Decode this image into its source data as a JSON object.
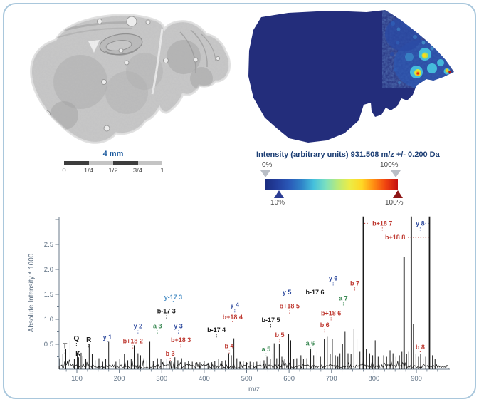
{
  "scale_bar": {
    "label": "4 mm",
    "tick_labels": [
      "0",
      "1/4",
      "1/2",
      "3/4",
      "1"
    ],
    "segment_colors": [
      "#3d3d3d",
      "#c4c4c4",
      "#3d3d3d",
      "#c4c4c4"
    ]
  },
  "colorbar": {
    "title": "Intensity (arbitrary units) 931.508 m/z +/- 0.200 Da",
    "top_left_label": "0%",
    "top_right_label": "100%",
    "bottom_left_label": "10%",
    "bottom_right_label": "100%",
    "top_marker_color": "#b9bec6",
    "low_marker_color": "#2b3c93",
    "max_marker_color": "#8e1616",
    "gradient": [
      "#1b2d80",
      "#233f9e",
      "#2a5ab8",
      "#2f83c8",
      "#45c0dc",
      "#7adfc0",
      "#b8ea7a",
      "#ecec46",
      "#ffd725",
      "#ff8c12",
      "#f04210",
      "#c41010"
    ]
  },
  "chart_data": {
    "type": "line",
    "subtype": "mass-spectrum",
    "xlabel": "m/z",
    "ylabel": "Absolute Intensity * 1000",
    "xlim": [
      58,
      979
    ],
    "ylim": [
      0,
      3.05
    ],
    "x_ticks": [
      100,
      200,
      300,
      400,
      500,
      600,
      700,
      800,
      900
    ],
    "y_ticks": [
      "0.5",
      "1.0",
      "1.5",
      "2.0",
      "2.5"
    ],
    "grid": false,
    "trace_color": "#1a1a1a",
    "axis_color": "#6a7a8a",
    "palette": {
      "y": "#2e4a9e",
      "y17": "#4e91c6",
      "a": "#3c8a55",
      "b": "#bf3a32",
      "b17": "#1a1a1a",
      "residue": "#1a1a1a"
    },
    "peaks": [
      [
        60,
        0.22
      ],
      [
        67,
        0.3
      ],
      [
        74,
        0.4
      ],
      [
        84,
        0.58
      ],
      [
        94,
        0.2
      ],
      [
        101,
        0.3
      ],
      [
        104,
        0.24
      ],
      [
        110,
        0.33
      ],
      [
        114,
        0.26
      ],
      [
        121,
        0.2
      ],
      [
        129,
        0.5
      ],
      [
        136,
        0.3
      ],
      [
        143,
        0.18
      ],
      [
        152,
        0.22
      ],
      [
        161,
        0.15
      ],
      [
        168,
        0.2
      ],
      [
        175,
        0.55
      ],
      [
        183,
        0.18
      ],
      [
        192,
        0.15
      ],
      [
        201,
        0.2
      ],
      [
        212,
        0.3
      ],
      [
        220,
        0.18
      ],
      [
        228,
        0.2
      ],
      [
        235,
        0.48
      ],
      [
        244,
        0.32
      ],
      [
        250,
        0.28
      ],
      [
        258,
        0.22
      ],
      [
        265,
        0.18
      ],
      [
        272,
        0.55
      ],
      [
        280,
        0.16
      ],
      [
        290,
        0.22
      ],
      [
        298,
        0.2
      ],
      [
        305,
        0.15
      ],
      [
        312,
        0.2
      ],
      [
        318,
        0.16
      ],
      [
        323,
        0.17
      ],
      [
        331,
        0.24
      ],
      [
        338,
        0.18
      ],
      [
        347,
        0.22
      ],
      [
        355,
        0.14
      ],
      [
        363,
        0.16
      ],
      [
        372,
        0.15
      ],
      [
        380,
        0.13
      ],
      [
        390,
        0.14
      ],
      [
        400,
        0.16
      ],
      [
        409,
        0.13
      ],
      [
        418,
        0.14
      ],
      [
        425,
        0.17
      ],
      [
        434,
        0.2
      ],
      [
        442,
        0.16
      ],
      [
        450,
        0.18
      ],
      [
        458,
        0.32
      ],
      [
        464,
        0.28
      ],
      [
        470,
        0.62
      ],
      [
        477,
        0.22
      ],
      [
        484,
        0.15
      ],
      [
        492,
        0.17
      ],
      [
        500,
        0.14
      ],
      [
        508,
        0.15
      ],
      [
        516,
        0.14
      ],
      [
        524,
        0.15
      ],
      [
        532,
        0.16
      ],
      [
        541,
        0.18
      ],
      [
        548,
        0.25
      ],
      [
        556,
        0.2
      ],
      [
        562,
        0.3
      ],
      [
        565,
        0.52
      ],
      [
        571,
        0.22
      ],
      [
        577,
        0.5
      ],
      [
        583,
        0.25
      ],
      [
        590,
        0.2
      ],
      [
        599,
        0.7
      ],
      [
        604,
        0.58
      ],
      [
        611,
        0.2
      ],
      [
        618,
        0.22
      ],
      [
        628,
        0.28
      ],
      [
        634,
        0.2
      ],
      [
        642,
        0.22
      ],
      [
        651,
        0.4
      ],
      [
        658,
        0.28
      ],
      [
        666,
        0.35
      ],
      [
        674,
        0.25
      ],
      [
        683,
        0.6
      ],
      [
        690,
        0.65
      ],
      [
        697,
        0.3
      ],
      [
        702,
        0.6
      ],
      [
        709,
        0.28
      ],
      [
        715,
        0.25
      ],
      [
        720,
        0.32
      ],
      [
        726,
        0.5
      ],
      [
        732,
        0.75
      ],
      [
        739,
        0.32
      ],
      [
        746,
        0.3
      ],
      [
        753,
        0.8
      ],
      [
        760,
        0.6
      ],
      [
        767,
        0.35
      ],
      [
        775,
        3.1
      ],
      [
        782,
        0.4
      ],
      [
        790,
        0.32
      ],
      [
        797,
        0.28
      ],
      [
        803,
        0.58
      ],
      [
        810,
        0.25
      ],
      [
        817,
        0.3
      ],
      [
        823,
        0.28
      ],
      [
        830,
        0.25
      ],
      [
        838,
        0.38
      ],
      [
        845,
        0.32
      ],
      [
        852,
        0.25
      ],
      [
        860,
        0.28
      ],
      [
        866,
        0.35
      ],
      [
        871,
        2.25
      ],
      [
        877,
        0.3
      ],
      [
        882,
        0.35
      ],
      [
        888,
        3.1
      ],
      [
        893,
        0.9
      ],
      [
        899,
        0.3
      ],
      [
        905,
        0.25
      ],
      [
        910,
        0.3
      ],
      [
        916,
        0.22
      ],
      [
        922,
        0.25
      ],
      [
        931,
        3.1
      ],
      [
        938,
        0.28
      ],
      [
        944,
        0.2
      ]
    ],
    "annotations": [
      {
        "text": "T",
        "mz": 72,
        "val": 0.42,
        "color": "residue"
      },
      {
        "text": "Q",
        "mz": 99,
        "val": 0.57,
        "color": "residue"
      },
      {
        "text": "K",
        "mz": 103,
        "val": 0.27,
        "color": "residue"
      },
      {
        "text": "R",
        "mz": 128,
        "val": 0.54,
        "color": "residue"
      },
      {
        "text": "y 1",
        "mz": 172,
        "val": 0.6,
        "color": "y"
      },
      {
        "text": "b+18 2",
        "mz": 232,
        "val": 0.52,
        "color": "b"
      },
      {
        "text": "y 2",
        "mz": 244,
        "val": 0.82,
        "color": "y"
      },
      {
        "text": "a 3",
        "mz": 290,
        "val": 0.82,
        "color": "a"
      },
      {
        "text": "b-17 3",
        "mz": 311,
        "val": 1.12,
        "color": "b17"
      },
      {
        "text": "b 3",
        "mz": 320,
        "val": 0.27,
        "color": "b"
      },
      {
        "text": "y-17 3",
        "mz": 327,
        "val": 1.4,
        "color": "y17"
      },
      {
        "text": "y 3",
        "mz": 339,
        "val": 0.82,
        "color": "y"
      },
      {
        "text": "b+18 3",
        "mz": 345,
        "val": 0.54,
        "color": "b"
      },
      {
        "text": "b-17 4",
        "mz": 429,
        "val": 0.74,
        "color": "b17"
      },
      {
        "text": "b 4",
        "mz": 459,
        "val": 0.42,
        "color": "b"
      },
      {
        "text": "b+18 4",
        "mz": 467,
        "val": 1.0,
        "color": "b"
      },
      {
        "text": "y 4",
        "mz": 472,
        "val": 1.24,
        "color": "y"
      },
      {
        "text": "a 5",
        "mz": 546,
        "val": 0.36,
        "color": "a"
      },
      {
        "text": "b-17 5",
        "mz": 557,
        "val": 0.94,
        "color": "b17"
      },
      {
        "text": "b 5",
        "mz": 578,
        "val": 0.64,
        "color": "b"
      },
      {
        "text": "y 5",
        "mz": 595,
        "val": 1.5,
        "color": "y"
      },
      {
        "text": "b+18 5",
        "mz": 601,
        "val": 1.22,
        "color": "b"
      },
      {
        "text": "a 6",
        "mz": 650,
        "val": 0.48,
        "color": "a"
      },
      {
        "text": "b-17 6",
        "mz": 661,
        "val": 1.5,
        "color": "b17"
      },
      {
        "text": "b 6",
        "mz": 684,
        "val": 0.84,
        "color": "b"
      },
      {
        "text": "b+18 6",
        "mz": 699,
        "val": 1.08,
        "color": "b"
      },
      {
        "text": "y 6",
        "mz": 704,
        "val": 1.78,
        "color": "y"
      },
      {
        "text": "a 7",
        "mz": 728,
        "val": 1.38,
        "color": "a"
      },
      {
        "text": "b 7",
        "mz": 755,
        "val": 1.68,
        "color": "b"
      },
      {
        "text": "b+18 7",
        "mz": 820,
        "val": 2.88,
        "color": "b",
        "hline": [
          777,
          789
        ]
      },
      {
        "text": "b+18 8",
        "mz": 850,
        "val": 2.6,
        "color": "b",
        "hline": [
          880,
          929
        ]
      },
      {
        "text": "y 8",
        "mz": 909,
        "val": 2.88,
        "color": "y",
        "hline": [
          921,
          929
        ]
      },
      {
        "text": "b 8",
        "mz": 909,
        "val": 0.4,
        "color": "b"
      }
    ]
  }
}
